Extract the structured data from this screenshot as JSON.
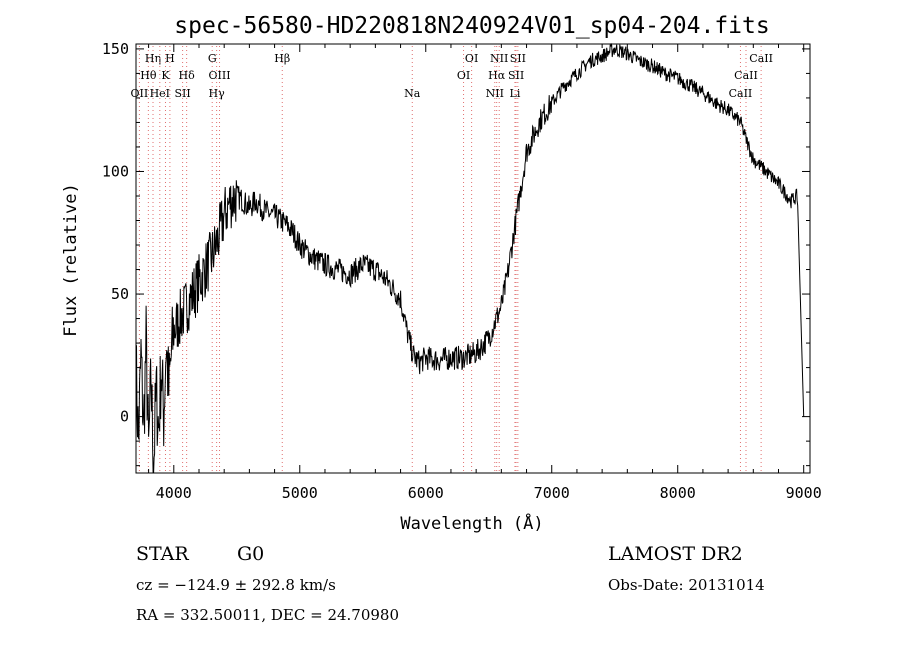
{
  "chart_data": {
    "type": "line",
    "title": "spec-56580-HD220818N240924V01_sp04-204.fits",
    "xlabel": "Wavelength (Å)",
    "ylabel": "Flux (relative)",
    "xlim": [
      3700,
      9050
    ],
    "ylim": [
      -23,
      152
    ],
    "x_ticks": [
      4000,
      5000,
      6000,
      7000,
      8000,
      9000
    ],
    "y_ticks": [
      0,
      50,
      100,
      150
    ],
    "grid": false,
    "series": [
      {
        "color": "#000000",
        "x": [
          3700,
          3720,
          3740,
          3760,
          3780,
          3800,
          3820,
          3840,
          3860,
          3880,
          3900,
          3920,
          3940,
          3960,
          3980,
          4000,
          4050,
          4100,
          4150,
          4200,
          4250,
          4300,
          4350,
          4400,
          4450,
          4500,
          4550,
          4600,
          4650,
          4700,
          4750,
          4800,
          4850,
          4900,
          4950,
          5000,
          5100,
          5200,
          5300,
          5400,
          5500,
          5600,
          5700,
          5800,
          5850,
          5900,
          5950,
          6000,
          6100,
          6200,
          6300,
          6400,
          6500,
          6600,
          6650,
          6700,
          6800,
          6900,
          7000,
          7100,
          7200,
          7300,
          7400,
          7500,
          7600,
          7700,
          7800,
          7900,
          8000,
          8100,
          8200,
          8300,
          8400,
          8500,
          8550,
          8600,
          8700,
          8800,
          8900,
          8950,
          9000
        ],
        "y": [
          20,
          -10,
          25,
          -5,
          30,
          -15,
          15,
          -20,
          10,
          -5,
          20,
          0,
          30,
          10,
          25,
          35,
          40,
          45,
          50,
          55,
          60,
          65,
          72,
          82,
          88,
          90,
          88,
          85,
          88,
          85,
          83,
          82,
          80,
          78,
          75,
          70,
          65,
          62,
          60,
          58,
          62,
          60,
          55,
          48,
          35,
          25,
          22,
          24,
          23,
          24,
          24,
          26,
          32,
          45,
          58,
          75,
          108,
          120,
          128,
          135,
          140,
          145,
          147,
          150,
          148,
          145,
          143,
          140,
          138,
          135,
          132,
          128,
          125,
          120,
          112,
          105,
          100,
          95,
          88,
          90,
          0
        ]
      }
    ],
    "line_markers": [
      {
        "label": "OII",
        "x": 3727,
        "row": 3
      },
      {
        "label": "Hη",
        "x": 3835,
        "row": 1
      },
      {
        "label": "Hθ",
        "x": 3798,
        "row": 2
      },
      {
        "label": "HeI",
        "x": 3889,
        "row": 3
      },
      {
        "label": "H",
        "x": 3969,
        "row": 1
      },
      {
        "label": "K",
        "x": 3934,
        "row": 2
      },
      {
        "label": "SII",
        "x": 4070,
        "row": 3
      },
      {
        "label": "Hδ",
        "x": 4102,
        "row": 2
      },
      {
        "label": "G",
        "x": 4305,
        "row": 1
      },
      {
        "label": "OIII",
        "x": 4363,
        "row": 2
      },
      {
        "label": "Hγ",
        "x": 4340,
        "row": 3
      },
      {
        "label": "Hβ",
        "x": 4861,
        "row": 1
      },
      {
        "label": "Na",
        "x": 5893,
        "row": 3
      },
      {
        "label": "OI",
        "x": 6364,
        "row": 1
      },
      {
        "label": "OI",
        "x": 6300,
        "row": 2
      },
      {
        "label": "NII",
        "x": 6583,
        "row": 1
      },
      {
        "label": "SII",
        "x": 6731,
        "row": 1
      },
      {
        "label": "Hα",
        "x": 6563,
        "row": 2
      },
      {
        "label": "SII",
        "x": 6717,
        "row": 2
      },
      {
        "label": "NII",
        "x": 6548,
        "row": 3
      },
      {
        "label": "Li",
        "x": 6708,
        "row": 3
      },
      {
        "label": "CaII",
        "x": 8662,
        "row": 1
      },
      {
        "label": "CaII",
        "x": 8542,
        "row": 2
      },
      {
        "label": "CaII",
        "x": 8498,
        "row": 3
      }
    ]
  },
  "info": {
    "object_class": "STAR",
    "subclass": "G0",
    "survey": "LAMOST DR2",
    "cz": "cz = −124.9 ± 292.8 km/s",
    "obs_date": "Obs-Date: 20131014",
    "coords": "RA = 332.50011, DEC =  24.70980"
  }
}
